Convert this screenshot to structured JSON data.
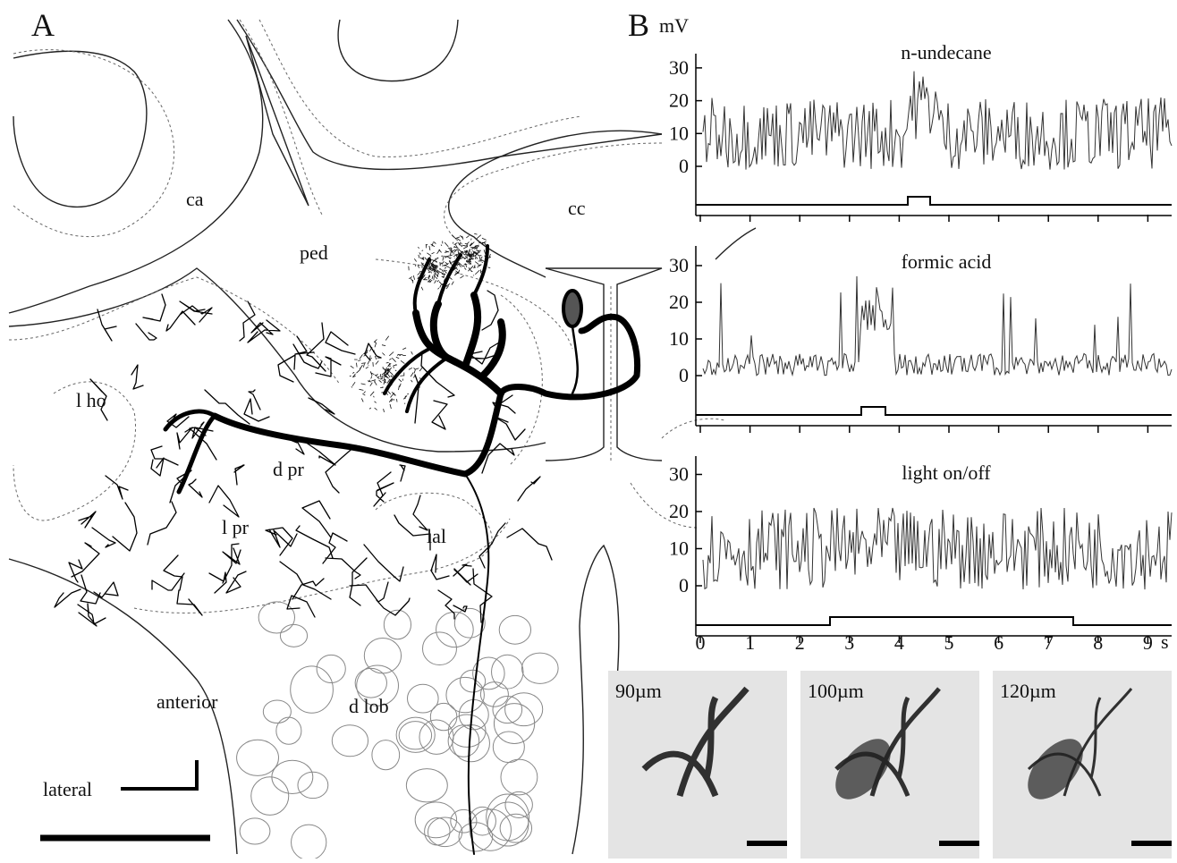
{
  "panel_a": {
    "label": "A",
    "regions": [
      "ca",
      "ped",
      "cc",
      "l ho",
      "d pr",
      "l pr",
      "lal",
      "d lob"
    ],
    "anterior": "anterior",
    "lateral": "lateral"
  },
  "panel_b": {
    "label": "B",
    "y_unit": "mV",
    "traces": [
      {
        "stimulus": "n-undecane",
        "yticks": [
          0,
          10,
          20,
          30
        ]
      },
      {
        "stimulus": "formic acid",
        "yticks": [
          0,
          10,
          20,
          30
        ]
      },
      {
        "stimulus": "light on/off",
        "yticks": [
          0,
          10,
          20,
          30
        ]
      }
    ],
    "xticks": [
      0,
      1,
      2,
      3,
      4,
      5,
      6,
      7,
      8,
      9
    ],
    "x_unit": "s"
  },
  "sections": [
    "90µm",
    "100µm",
    "120µm"
  ]
}
